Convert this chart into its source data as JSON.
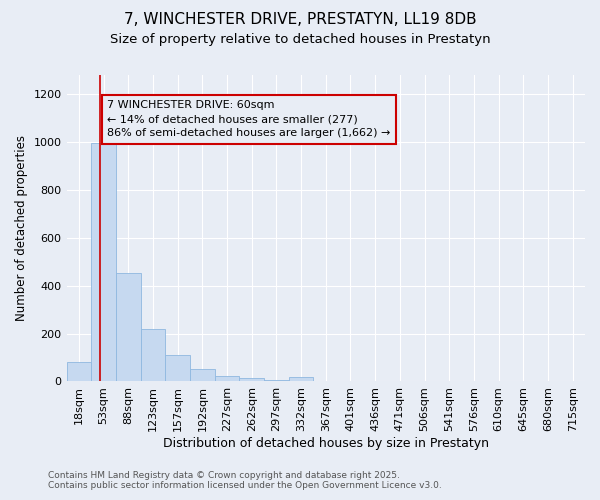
{
  "title_line1": "7, WINCHESTER DRIVE, PRESTATYN, LL19 8DB",
  "title_line2": "Size of property relative to detached houses in Prestatyn",
  "xlabel": "Distribution of detached houses by size in Prestatyn",
  "ylabel": "Number of detached properties",
  "categories": [
    "18sqm",
    "53sqm",
    "88sqm",
    "123sqm",
    "157sqm",
    "192sqm",
    "227sqm",
    "262sqm",
    "297sqm",
    "332sqm",
    "367sqm",
    "401sqm",
    "436sqm",
    "471sqm",
    "506sqm",
    "541sqm",
    "576sqm",
    "610sqm",
    "645sqm",
    "680sqm",
    "715sqm"
  ],
  "values": [
    80,
    995,
    455,
    220,
    110,
    50,
    22,
    15,
    8,
    20,
    0,
    0,
    0,
    0,
    0,
    0,
    0,
    0,
    0,
    0,
    0
  ],
  "bar_color": "#c6d9f0",
  "bar_edge_color": "#8fb8e0",
  "background_color": "#e8edf5",
  "grid_color": "#ffffff",
  "annotation_box_color": "#cc0000",
  "annotation_line1": "7 WINCHESTER DRIVE: 60sqm",
  "annotation_line2": "← 14% of detached houses are smaller (277)",
  "annotation_line3": "86% of semi-detached houses are larger (1,662) →",
  "vline_color": "#cc0000",
  "vline_x_index": 0.85,
  "ylim_max": 1280,
  "yticks": [
    0,
    200,
    400,
    600,
    800,
    1000,
    1200
  ],
  "footer_line1": "Contains HM Land Registry data © Crown copyright and database right 2025.",
  "footer_line2": "Contains public sector information licensed under the Open Government Licence v3.0.",
  "title_fontsize": 11,
  "subtitle_fontsize": 9.5,
  "annotation_fontsize": 8,
  "axis_label_fontsize": 9,
  "ylabel_fontsize": 8.5,
  "tick_fontsize": 8,
  "footer_fontsize": 6.5
}
